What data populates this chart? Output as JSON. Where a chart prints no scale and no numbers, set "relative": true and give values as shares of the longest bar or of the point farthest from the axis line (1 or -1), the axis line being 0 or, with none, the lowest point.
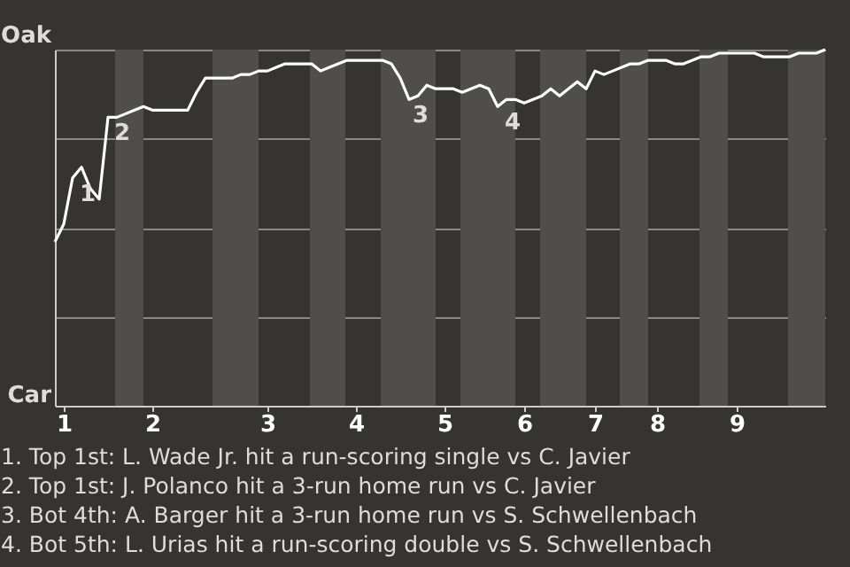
{
  "chart_data": {
    "type": "line",
    "relative": true,
    "categories": [
      null,
      "1",
      null,
      null,
      null,
      null,
      null,
      null,
      null,
      null,
      null,
      "2",
      null,
      null,
      null,
      null,
      null,
      null,
      null,
      null,
      null,
      null,
      null,
      null,
      "3",
      null,
      null,
      null,
      null,
      null,
      null,
      null,
      null,
      null,
      "4",
      null,
      null,
      null,
      null,
      null,
      null,
      null,
      null,
      null,
      "5",
      null,
      null,
      null,
      null,
      null,
      null,
      null,
      null,
      "6",
      null,
      null,
      null,
      null,
      null,
      null,
      null,
      "7",
      null,
      null,
      null,
      null,
      null,
      null,
      "8",
      null,
      null,
      null,
      null,
      null,
      null,
      null,
      null,
      "9",
      null,
      null,
      null,
      null,
      null,
      null,
      null,
      null,
      null,
      null
    ],
    "series": [
      {
        "color": "#ffffff",
        "values": [
          0.46,
          0.51,
          0.64,
          0.67,
          0.61,
          0.58,
          0.81,
          0.81,
          0.82,
          0.83,
          0.84,
          0.83,
          0.83,
          0.83,
          0.83,
          0.83,
          0.88,
          0.92,
          0.92,
          0.92,
          0.92,
          0.93,
          0.93,
          0.94,
          0.94,
          0.95,
          0.96,
          0.96,
          0.96,
          0.96,
          0.94,
          0.95,
          0.96,
          0.97,
          0.97,
          0.97,
          0.97,
          0.97,
          0.96,
          0.92,
          0.86,
          0.87,
          0.9,
          0.89,
          0.89,
          0.89,
          0.88,
          0.89,
          0.9,
          0.89,
          0.84,
          0.86,
          0.86,
          0.85,
          0.86,
          0.87,
          0.89,
          0.87,
          0.89,
          0.91,
          0.89,
          0.94,
          0.93,
          0.94,
          0.95,
          0.96,
          0.96,
          0.97,
          0.97,
          0.97,
          0.96,
          0.96,
          0.97,
          0.98,
          0.98,
          0.99,
          0.99,
          0.99,
          0.99,
          0.99,
          0.98,
          0.98,
          0.98,
          0.98,
          0.99,
          0.99,
          0.99,
          1.0
        ]
      }
    ],
    "grid": "y",
    "annotations": [
      "Oak",
      "Car",
      {
        "text": "1",
        "y": 0.64
      },
      {
        "text": "2",
        "y": 0.81
      },
      {
        "text": "3",
        "y": 0.86
      },
      {
        "text": "4",
        "y": 0.84
      },
      "1. Top 1st: L. Wade Jr. hit a run-scoring single vs C. Javier",
      "2. Top 1st: J. Polanco hit a 3-run home run vs C. Javier",
      "3. Bot 4th: A. Barger hit a 3-run home run vs S. Schwellenbach",
      "4. Bot 5th: L. Urias hit a run-scoring double vs S. Schwellenbach"
    ]
  }
}
